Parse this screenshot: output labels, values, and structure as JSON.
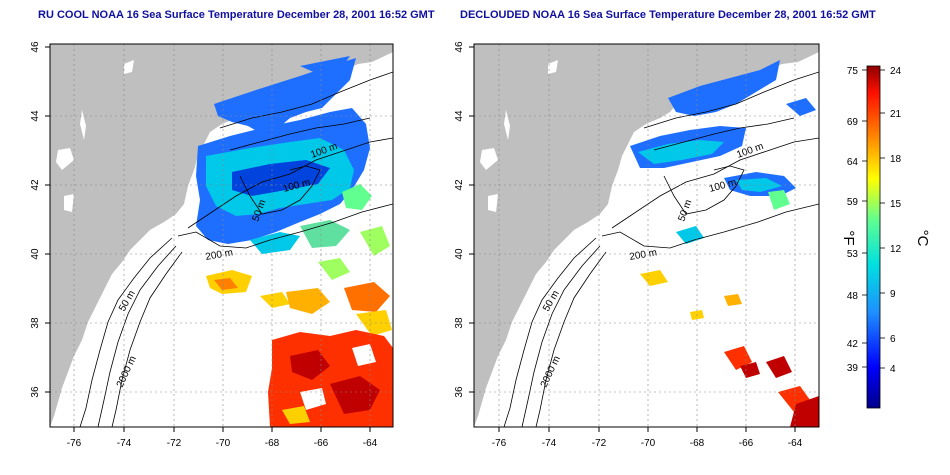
{
  "left_panel": {
    "title": "RU COOL NOAA 16 Sea Surface Temperature December 28, 2001 16:52 GMT"
  },
  "right_panel": {
    "title": "DECLOUDED NOAA 16 Sea Surface Temperature December 28, 2001 16:52 GMT"
  },
  "axes": {
    "longitude_ticks": [
      "-76",
      "-74",
      "-72",
      "-70",
      "-68",
      "-66",
      "-64"
    ],
    "latitude_ticks": [
      "46",
      "44",
      "42",
      "40",
      "38",
      "36"
    ]
  },
  "contours": {
    "left": [
      "100 m",
      "100 m",
      "50 m",
      "200 m",
      "50 m",
      "2000 m"
    ],
    "right": [
      "100 m",
      "100 m",
      "50 m",
      "200 m",
      "50 m",
      "2000 m"
    ]
  },
  "colorbar": {
    "fahrenheit_ticks": [
      "75",
      "69",
      "64",
      "59",
      "53",
      "48",
      "42",
      "39"
    ],
    "celsius_ticks": [
      "24",
      "21",
      "18",
      "15",
      "12",
      "9",
      "6",
      "4"
    ],
    "fahrenheit_unit": "°F",
    "celsius_unit": "°C"
  },
  "colors": {
    "land": "#bfbfbf",
    "frame": "#000000",
    "contour": "#000000",
    "cold": "#0000c0",
    "cool": "#1e90ff",
    "mid": "#00e0e0",
    "warm_mid": "#ffd000",
    "warm": "#ff6000",
    "hot": "#c00000"
  }
}
